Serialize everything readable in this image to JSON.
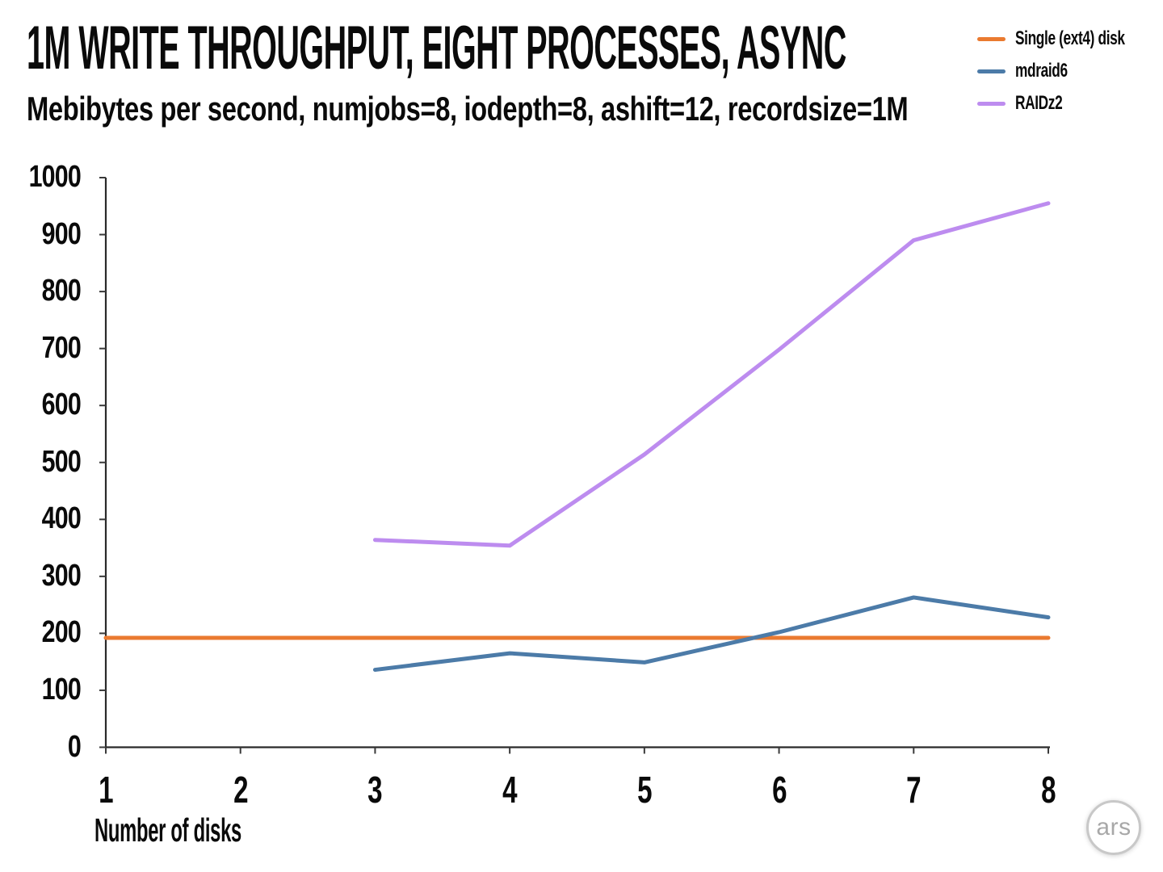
{
  "header": {
    "title": "1M WRITE THROUGHPUT, EIGHT PROCESSES, ASYNC",
    "subtitle": "Mebibytes per second, numjobs=8, iodepth=8, ashift=12, recordsize=1M"
  },
  "legend": {
    "items": [
      {
        "label": "Single (ext4) disk",
        "color": "#EA7A30"
      },
      {
        "label": "mdraid6",
        "color": "#4C7BA8"
      },
      {
        "label": "RAIDz2",
        "color": "#BD8CEF"
      }
    ]
  },
  "chart_data": {
    "type": "line",
    "title": "1M WRITE THROUGHPUT, EIGHT PROCESSES, ASYNC",
    "subtitle": "Mebibytes per second, numjobs=8, iodepth=8, ashift=12, recordsize=1M",
    "xlabel": "Number of disks",
    "ylabel": "",
    "xlim": [
      1,
      8
    ],
    "ylim": [
      0,
      1000
    ],
    "x_ticks": [
      1,
      2,
      3,
      4,
      5,
      6,
      7,
      8
    ],
    "y_ticks": [
      0,
      100,
      200,
      300,
      400,
      500,
      600,
      700,
      800,
      900,
      1000
    ],
    "grid": false,
    "legend_position": "top-right",
    "series": [
      {
        "name": "Single (ext4) disk",
        "color": "#EA7A30",
        "x": [
          1,
          2,
          3,
          4,
          5,
          6,
          7,
          8
        ],
        "values": [
          192,
          192,
          192,
          192,
          192,
          192,
          192,
          192
        ]
      },
      {
        "name": "mdraid6",
        "color": "#4C7BA8",
        "x": [
          3,
          4,
          5,
          6,
          7,
          8
        ],
        "values": [
          136,
          165,
          149,
          202,
          263,
          228
        ]
      },
      {
        "name": "RAIDz2",
        "color": "#BD8CEF",
        "x": [
          3,
          4,
          5,
          6,
          7,
          8
        ],
        "values": [
          364,
          354,
          514,
          698,
          890,
          955
        ]
      }
    ]
  },
  "branding": {
    "logo_text": "ars"
  }
}
